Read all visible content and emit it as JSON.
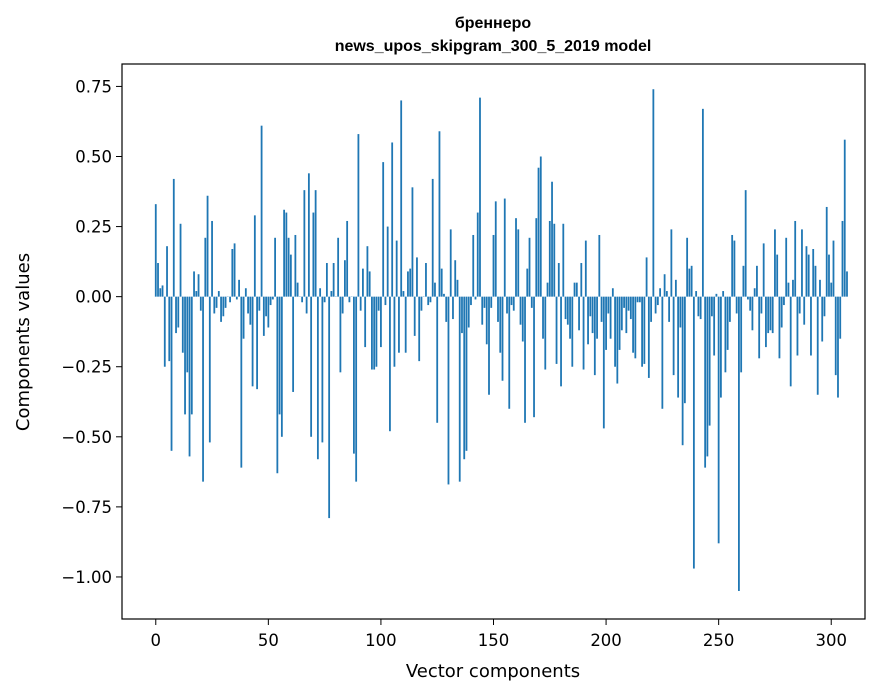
{
  "chart_data": {
    "type": "bar",
    "title_line1": "бреннеро",
    "title_line2": "news_upos_skipgram_300_5_2019 model",
    "xlabel": "Vector components",
    "ylabel": "Components values",
    "xlim": [
      -15,
      315
    ],
    "ylim": [
      -1.15,
      0.83
    ],
    "xticks": [
      0,
      50,
      100,
      150,
      200,
      250,
      300
    ],
    "yticks": [
      0.75,
      0.5,
      0.25,
      0.0,
      -0.25,
      -0.5,
      -0.75,
      -1.0
    ],
    "xtick_labels": [
      "0",
      "50",
      "100",
      "150",
      "200",
      "250",
      "300"
    ],
    "ytick_labels": [
      "0.75",
      "0.50",
      "0.25",
      "0.00",
      "−0.25",
      "−0.50",
      "−0.75",
      "−1.00"
    ],
    "bar_color": "#1f77b4",
    "values": [
      0.33,
      0.12,
      0.03,
      0.04,
      -0.25,
      0.18,
      -0.23,
      -0.55,
      0.42,
      -0.13,
      -0.11,
      0.26,
      -0.2,
      -0.42,
      -0.27,
      -0.57,
      -0.42,
      0.09,
      0.02,
      0.08,
      -0.05,
      -0.66,
      0.21,
      0.36,
      -0.52,
      0.27,
      -0.06,
      -0.04,
      0.02,
      -0.09,
      -0.07,
      -0.04,
      0.0,
      -0.02,
      0.17,
      0.19,
      -0.01,
      0.06,
      -0.61,
      -0.15,
      0.03,
      -0.06,
      -0.1,
      -0.32,
      0.29,
      -0.33,
      -0.05,
      0.61,
      -0.14,
      -0.07,
      -0.11,
      -0.03,
      -0.01,
      0.21,
      -0.63,
      -0.42,
      -0.5,
      0.31,
      0.3,
      0.21,
      0.15,
      -0.34,
      0.22,
      0.05,
      0.0,
      -0.02,
      0.38,
      -0.06,
      0.44,
      -0.5,
      0.3,
      0.38,
      -0.58,
      0.03,
      -0.52,
      -0.02,
      0.12,
      -0.79,
      0.02,
      0.12,
      0.0,
      0.21,
      -0.27,
      -0.06,
      0.13,
      0.27,
      -0.02,
      0.0,
      -0.56,
      -0.66,
      0.58,
      -0.05,
      0.1,
      -0.18,
      0.18,
      0.09,
      -0.26,
      -0.26,
      -0.25,
      -0.05,
      -0.18,
      0.48,
      -0.03,
      0.25,
      -0.48,
      0.55,
      -0.25,
      0.2,
      -0.2,
      0.7,
      0.02,
      -0.2,
      0.09,
      0.1,
      0.39,
      -0.14,
      0.14,
      -0.23,
      -0.05,
      0.0,
      0.12,
      -0.03,
      -0.02,
      0.42,
      0.05,
      -0.45,
      0.59,
      0.1,
      0.01,
      -0.09,
      -0.67,
      0.24,
      -0.08,
      0.13,
      0.06,
      -0.66,
      -0.13,
      -0.58,
      -0.55,
      -0.11,
      -0.03,
      0.22,
      -0.01,
      0.3,
      0.71,
      -0.1,
      -0.04,
      -0.17,
      -0.35,
      -0.04,
      0.22,
      0.34,
      -0.09,
      -0.2,
      -0.3,
      0.35,
      -0.06,
      -0.4,
      -0.03,
      -0.05,
      0.28,
      0.24,
      -0.1,
      -0.16,
      -0.45,
      0.1,
      0.21,
      -0.04,
      -0.43,
      0.28,
      0.46,
      0.5,
      -0.15,
      -0.26,
      0.05,
      0.27,
      0.41,
      0.26,
      -0.24,
      0.12,
      -0.32,
      0.26,
      -0.08,
      -0.1,
      -0.15,
      -0.25,
      0.05,
      0.05,
      -0.12,
      0.12,
      -0.26,
      0.2,
      -0.17,
      -0.07,
      -0.13,
      -0.28,
      -0.15,
      0.22,
      -0.09,
      -0.47,
      -0.19,
      -0.06,
      -0.15,
      0.03,
      -0.25,
      -0.31,
      -0.19,
      -0.12,
      -0.04,
      -0.13,
      -0.05,
      -0.08,
      -0.2,
      -0.22,
      -0.02,
      -0.02,
      -0.25,
      -0.24,
      0.14,
      -0.29,
      -0.09,
      0.74,
      -0.06,
      -0.03,
      0.03,
      -0.4,
      0.08,
      0.02,
      -0.09,
      0.24,
      -0.28,
      0.06,
      -0.36,
      -0.11,
      -0.53,
      -0.38,
      0.21,
      0.1,
      0.11,
      -0.97,
      0.02,
      -0.07,
      -0.08,
      0.67,
      -0.61,
      -0.57,
      -0.46,
      -0.07,
      -0.21,
      0.01,
      -0.88,
      -0.36,
      0.02,
      -0.27,
      -0.19,
      -0.09,
      0.22,
      0.2,
      -0.06,
      -1.05,
      -0.27,
      0.11,
      0.38,
      -0.01,
      -0.05,
      -0.12,
      0.03,
      0.11,
      -0.22,
      -0.06,
      0.19,
      -0.18,
      -0.13,
      -0.12,
      -0.13,
      0.24,
      0.15,
      -0.22,
      -0.11,
      -0.03,
      0.21,
      0.05,
      -0.32,
      0.06,
      0.27,
      -0.21,
      -0.06,
      0.24,
      -0.1,
      0.18,
      0.15,
      -0.21,
      0.17,
      0.11,
      -0.35,
      0.06,
      -0.16,
      -0.07,
      0.32,
      0.15,
      0.05,
      0.2,
      -0.28,
      -0.36,
      -0.15,
      0.27,
      0.56,
      0.09
    ]
  }
}
